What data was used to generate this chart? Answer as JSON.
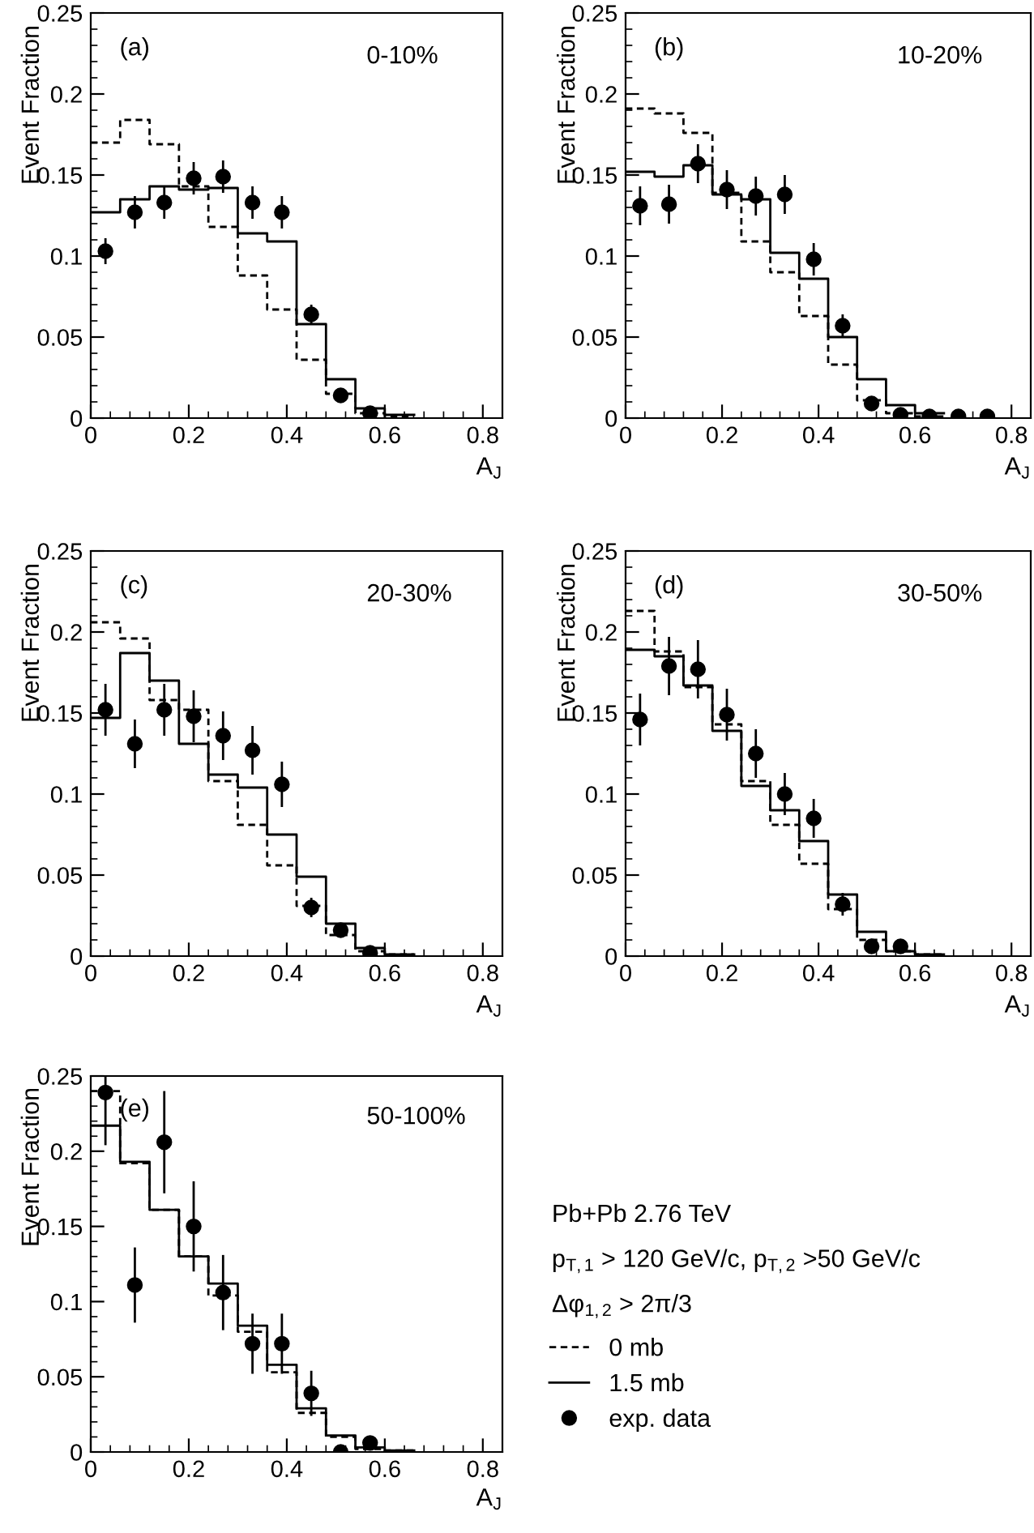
{
  "chart_data": [
    {
      "type": "step",
      "xlabel": "A$_{J}$",
      "ylabel": "Event Fraction",
      "annotations": [
        "(a)",
        "0-10%"
      ],
      "xlim": [
        0,
        0.84
      ],
      "ylim": [
        0,
        0.25
      ],
      "xticks": [
        0,
        0.2,
        0.4,
        0.6,
        0.8
      ],
      "yticks": [
        0,
        0.05,
        0.1,
        0.15,
        0.2,
        0.25
      ],
      "series": [
        {
          "color": "#000000",
          "line_style": "dashed",
          "x": [
            0,
            0.06,
            0.12,
            0.18,
            0.24,
            0.3,
            0.36,
            0.42,
            0.48,
            0.54,
            0.6,
            0.66
          ],
          "values": [
            0.17,
            0.184,
            0.169,
            0.143,
            0.118,
            0.088,
            0.067,
            0.036,
            0.015,
            0.003,
            0.001,
            0.001
          ]
        },
        {
          "color": "#000000",
          "line_style": "solid",
          "x": [
            0,
            0.06,
            0.12,
            0.18,
            0.24,
            0.3,
            0.36,
            0.42,
            0.48,
            0.54,
            0.6,
            0.66
          ],
          "values": [
            0.127,
            0.135,
            0.143,
            0.141,
            0.142,
            0.114,
            0.109,
            0.058,
            0.024,
            0.006,
            0.002,
            0.002
          ]
        },
        {
          "type": "scatter",
          "marker": "circle",
          "color": "#000000",
          "x": [
            0.03,
            0.09,
            0.15,
            0.21,
            0.27,
            0.33,
            0.39,
            0.45,
            0.51,
            0.57
          ],
          "values": [
            0.103,
            0.127,
            0.133,
            0.148,
            0.149,
            0.133,
            0.127,
            0.064,
            0.014,
            0.003
          ],
          "errors": [
            0.008,
            0.01,
            0.01,
            0.01,
            0.01,
            0.01,
            0.01,
            0.006,
            0.004,
            0.002
          ]
        }
      ]
    },
    {
      "type": "step",
      "xlabel": "A$_{J}$",
      "ylabel": "Event Fraction",
      "annotations": [
        "(b)",
        "10-20%"
      ],
      "xlim": [
        0,
        0.84
      ],
      "ylim": [
        0,
        0.25
      ],
      "xticks": [
        0,
        0.2,
        0.4,
        0.6,
        0.8
      ],
      "yticks": [
        0,
        0.05,
        0.1,
        0.15,
        0.2,
        0.25
      ],
      "series": [
        {
          "color": "#000000",
          "line_style": "dashed",
          "x": [
            0,
            0.06,
            0.12,
            0.18,
            0.24,
            0.3,
            0.36,
            0.42,
            0.48,
            0.54,
            0.6,
            0.66
          ],
          "values": [
            0.191,
            0.188,
            0.176,
            0.139,
            0.109,
            0.09,
            0.063,
            0.033,
            0.011,
            0.003,
            0.001,
            0.001
          ]
        },
        {
          "color": "#000000",
          "line_style": "solid",
          "x": [
            0,
            0.06,
            0.12,
            0.18,
            0.24,
            0.3,
            0.36,
            0.42,
            0.48,
            0.54,
            0.6,
            0.66
          ],
          "values": [
            0.152,
            0.149,
            0.156,
            0.138,
            0.135,
            0.102,
            0.086,
            0.05,
            0.024,
            0.008,
            0.003,
            0.003
          ]
        },
        {
          "type": "scatter",
          "marker": "circle",
          "color": "#000000",
          "x": [
            0.03,
            0.09,
            0.15,
            0.21,
            0.27,
            0.33,
            0.39,
            0.45,
            0.51,
            0.57,
            0.63,
            0.69,
            0.75
          ],
          "values": [
            0.131,
            0.132,
            0.157,
            0.141,
            0.137,
            0.138,
            0.098,
            0.057,
            0.009,
            0.002,
            0.001,
            0.001,
            0.001
          ],
          "errors": [
            0.012,
            0.012,
            0.012,
            0.012,
            0.012,
            0.012,
            0.01,
            0.007,
            0.003,
            0.002,
            0.001,
            0.001,
            0.001
          ]
        }
      ]
    },
    {
      "type": "step",
      "xlabel": "A$_{J}$",
      "ylabel": "Event Fraction",
      "annotations": [
        "(c)",
        "20-30%"
      ],
      "xlim": [
        0,
        0.84
      ],
      "ylim": [
        0,
        0.25
      ],
      "xticks": [
        0,
        0.2,
        0.4,
        0.6,
        0.8
      ],
      "yticks": [
        0,
        0.05,
        0.1,
        0.15,
        0.2,
        0.25
      ],
      "series": [
        {
          "color": "#000000",
          "line_style": "dashed",
          "x": [
            0,
            0.06,
            0.12,
            0.18,
            0.24,
            0.3,
            0.36,
            0.42,
            0.48,
            0.54,
            0.6,
            0.66
          ],
          "values": [
            0.206,
            0.196,
            0.158,
            0.152,
            0.108,
            0.081,
            0.056,
            0.031,
            0.013,
            0.003,
            0.001,
            0.001
          ]
        },
        {
          "color": "#000000",
          "line_style": "solid",
          "x": [
            0,
            0.06,
            0.12,
            0.18,
            0.24,
            0.3,
            0.36,
            0.42,
            0.48,
            0.54,
            0.6,
            0.66
          ],
          "values": [
            0.147,
            0.187,
            0.17,
            0.131,
            0.112,
            0.104,
            0.075,
            0.049,
            0.02,
            0.005,
            0.001,
            0.001
          ]
        },
        {
          "type": "scatter",
          "marker": "circle",
          "color": "#000000",
          "x": [
            0.03,
            0.09,
            0.15,
            0.21,
            0.27,
            0.33,
            0.39,
            0.45,
            0.51,
            0.57
          ],
          "values": [
            0.152,
            0.131,
            0.152,
            0.148,
            0.136,
            0.127,
            0.106,
            0.03,
            0.016,
            0.002
          ],
          "errors": [
            0.016,
            0.015,
            0.016,
            0.016,
            0.015,
            0.015,
            0.014,
            0.006,
            0.004,
            0.002
          ]
        }
      ]
    },
    {
      "type": "step",
      "xlabel": "A$_{J}$",
      "ylabel": "Event Fraction",
      "annotations": [
        "(d)",
        "30-50%"
      ],
      "xlim": [
        0,
        0.84
      ],
      "ylim": [
        0,
        0.25
      ],
      "xticks": [
        0,
        0.2,
        0.4,
        0.6,
        0.8
      ],
      "yticks": [
        0,
        0.05,
        0.1,
        0.15,
        0.2,
        0.25
      ],
      "series": [
        {
          "color": "#000000",
          "line_style": "dashed",
          "x": [
            0,
            0.06,
            0.12,
            0.18,
            0.24,
            0.3,
            0.36,
            0.42,
            0.48,
            0.54,
            0.6,
            0.66
          ],
          "values": [
            0.213,
            0.188,
            0.166,
            0.143,
            0.108,
            0.081,
            0.057,
            0.029,
            0.01,
            0.003,
            0.001,
            0.001
          ]
        },
        {
          "color": "#000000",
          "line_style": "solid",
          "x": [
            0,
            0.06,
            0.12,
            0.18,
            0.24,
            0.3,
            0.36,
            0.42,
            0.48,
            0.54,
            0.6,
            0.66
          ],
          "values": [
            0.189,
            0.185,
            0.167,
            0.139,
            0.105,
            0.09,
            0.071,
            0.038,
            0.015,
            0.003,
            0.001,
            0.001
          ]
        },
        {
          "type": "scatter",
          "marker": "circle",
          "color": "#000000",
          "x": [
            0.03,
            0.09,
            0.15,
            0.21,
            0.27,
            0.33,
            0.39,
            0.45,
            0.51,
            0.57
          ],
          "values": [
            0.146,
            0.179,
            0.177,
            0.149,
            0.125,
            0.1,
            0.085,
            0.032,
            0.006,
            0.006
          ],
          "errors": [
            0.016,
            0.018,
            0.018,
            0.016,
            0.015,
            0.013,
            0.012,
            0.007,
            0.003,
            0.003
          ]
        }
      ]
    },
    {
      "type": "step",
      "xlabel": "A$_{J}$",
      "ylabel": "Event Fraction",
      "annotations": [
        "(e)",
        "50-100%",
        "Pb+Pb 2.76 TeV",
        "p$_{T,1}$ > 120 GeV/c, p$_{T,2}$ >50 GeV/c",
        "Δφ$_{1,2}$ > 2π/3"
      ],
      "xlim": [
        0,
        0.84
      ],
      "ylim": [
        0,
        0.25
      ],
      "xticks": [
        0,
        0.2,
        0.4,
        0.6,
        0.8
      ],
      "yticks": [
        0,
        0.05,
        0.1,
        0.15,
        0.2,
        0.25
      ],
      "legend": "right",
      "series": [
        {
          "name": "0 mb",
          "color": "#000000",
          "line_style": "dashed",
          "x": [
            0,
            0.06,
            0.12,
            0.18,
            0.24,
            0.3,
            0.36,
            0.42,
            0.48,
            0.54,
            0.6,
            0.66
          ],
          "values": [
            0.24,
            0.192,
            0.161,
            0.13,
            0.104,
            0.08,
            0.053,
            0.026,
            0.01,
            0.002,
            0.001,
            0.001
          ]
        },
        {
          "name": "1.5 mb",
          "color": "#000000",
          "line_style": "solid",
          "x": [
            0,
            0.06,
            0.12,
            0.18,
            0.24,
            0.3,
            0.36,
            0.42,
            0.48,
            0.54,
            0.6,
            0.66
          ],
          "values": [
            0.217,
            0.193,
            0.161,
            0.13,
            0.112,
            0.084,
            0.058,
            0.029,
            0.011,
            0.003,
            0.001,
            0.001
          ]
        },
        {
          "type": "scatter",
          "marker": "circle",
          "name": "exp. data",
          "color": "#000000",
          "x": [
            0.03,
            0.09,
            0.15,
            0.21,
            0.27,
            0.33,
            0.39,
            0.45,
            0.51,
            0.57
          ],
          "values": [
            0.239,
            0.111,
            0.206,
            0.15,
            0.106,
            0.072,
            0.072,
            0.039,
            0.0,
            0.006
          ],
          "errors": [
            0.035,
            0.025,
            0.034,
            0.03,
            0.025,
            0.02,
            0.02,
            0.015,
            null,
            null
          ]
        }
      ]
    }
  ]
}
